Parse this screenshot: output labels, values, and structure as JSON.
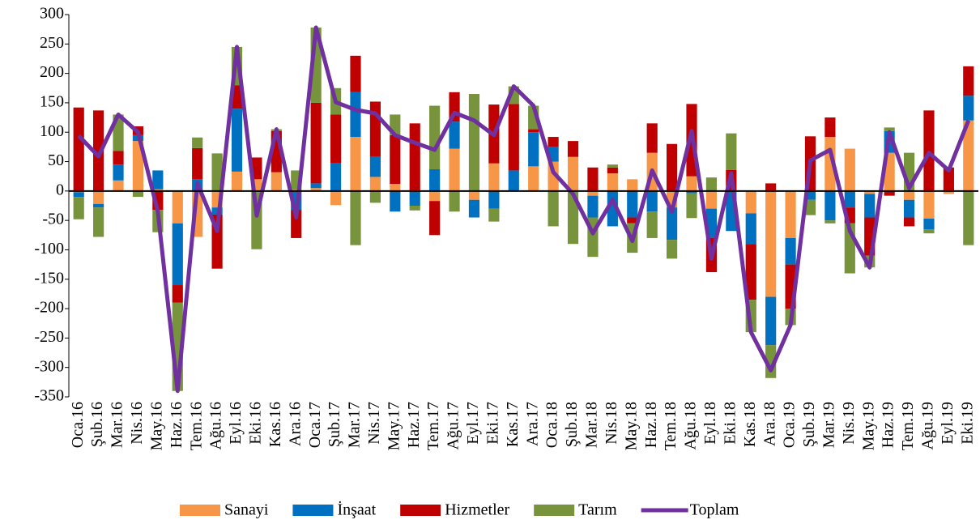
{
  "chart_data": {
    "type": "bar",
    "stacked": true,
    "categories": [
      "Oca.16",
      "Şub.16",
      "Mar.16",
      "Nis.16",
      "May.16",
      "Haz.16",
      "Tem.16",
      "Ağu.16",
      "Eyl.16",
      "Eki.16",
      "Kas.16",
      "Ara.16",
      "Oca.17",
      "Şub.17",
      "Mar.17",
      "Nis.17",
      "May.17",
      "Haz.17",
      "Tem.17",
      "Ağu.17",
      "Eyl.17",
      "Eki.17",
      "Kas.17",
      "Ara.17",
      "Oca.18",
      "Şub.18",
      "Mar.18",
      "Nis.18",
      "May.18",
      "Haz.18",
      "Tem.18",
      "Ağu.18",
      "Eyl.18",
      "Eki.18",
      "Kas.18",
      "Ara.18",
      "Oca.19",
      "Şub.19",
      "Mar.19",
      "Nis.19",
      "May.19",
      "Haz.19",
      "Tem.19",
      "Ağu.19",
      "Eyl.19",
      "Eki.19"
    ],
    "series": [
      {
        "name": "Sanayi",
        "color": "#f79646",
        "values": [
          -2,
          -22,
          18,
          85,
          3,
          -55,
          -78,
          -28,
          33,
          20,
          32,
          2,
          5,
          -24,
          92,
          24,
          12,
          0,
          -17,
          72,
          -15,
          47,
          0,
          42,
          50,
          58,
          -8,
          30,
          20,
          65,
          -28,
          25,
          -30,
          0,
          -38,
          -180,
          -80,
          0,
          92,
          72,
          -5,
          65,
          -15,
          -47,
          -5,
          120
        ]
      },
      {
        "name": "İnşaat",
        "color": "#0070c0",
        "values": [
          -8,
          -6,
          27,
          10,
          32,
          -105,
          20,
          -12,
          107,
          -2,
          0,
          -32,
          8,
          48,
          76,
          34,
          -35,
          -25,
          37,
          46,
          -30,
          -30,
          35,
          58,
          25,
          0,
          -37,
          -60,
          -45,
          -35,
          -55,
          -4,
          -50,
          -68,
          -52,
          -82,
          -45,
          -15,
          -50,
          -28,
          -40,
          37,
          -30,
          -18,
          0,
          42
        ]
      },
      {
        "name": "Hizmetler",
        "color": "#c00000",
        "values": [
          142,
          137,
          23,
          15,
          -32,
          -30,
          53,
          -92,
          40,
          37,
          70,
          -48,
          137,
          82,
          62,
          94,
          83,
          115,
          -58,
          50,
          0,
          100,
          113,
          5,
          17,
          27,
          40,
          10,
          -10,
          50,
          80,
          123,
          -58,
          36,
          -95,
          13,
          -75,
          93,
          33,
          -27,
          -65,
          -8,
          -15,
          137,
          40,
          50
        ]
      },
      {
        "name": "Tarım",
        "color": "#77933c",
        "values": [
          -38,
          -50,
          62,
          -10,
          -38,
          -150,
          18,
          64,
          65,
          -97,
          3,
          33,
          128,
          45,
          -92,
          -20,
          35,
          -8,
          108,
          -35,
          165,
          -22,
          30,
          40,
          -60,
          -90,
          -67,
          5,
          -50,
          -45,
          -32,
          -42,
          23,
          62,
          -55,
          -56,
          -28,
          -26,
          -5,
          -85,
          -20,
          6,
          65,
          -7,
          0,
          -92
        ]
      },
      {
        "name": "Toplam",
        "color": "#7030a0",
        "type": "line",
        "values": [
          94,
          59,
          130,
          100,
          -35,
          -340,
          13,
          -68,
          245,
          -42,
          105,
          -45,
          278,
          151,
          138,
          132,
          95,
          82,
          70,
          133,
          120,
          95,
          178,
          145,
          32,
          -5,
          -72,
          -15,
          -85,
          35,
          -35,
          102,
          -115,
          30,
          -240,
          -305,
          -228,
          52,
          70,
          -68,
          -130,
          100,
          5,
          65,
          35,
          120
        ]
      }
    ],
    "ylim": [
      -350,
      300
    ],
    "yticks": [
      -350,
      -300,
      -250,
      -200,
      -150,
      -100,
      -50,
      0,
      50,
      100,
      150,
      200,
      250,
      300
    ]
  }
}
